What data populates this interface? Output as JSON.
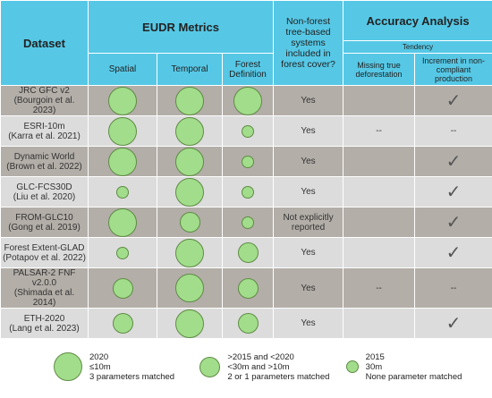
{
  "header": {
    "dataset": "Dataset",
    "eudr": "EUDR Metrics",
    "spatial": "Spatial",
    "temporal": "Temporal",
    "forest_definition": "Forest Definition",
    "non_forest": "Non-forest tree-based systems included in forest cover?",
    "accuracy": "Accuracy Analysis",
    "tendency": "Tendency",
    "missing": "Missing true deforestation",
    "increment": "Increment in non-compliant production"
  },
  "rows": [
    {
      "dataset": "JRC GFC v2",
      "reference": "(Bourgoin et al. 2023)",
      "spatial": 0,
      "temporal": 0,
      "forest_definition": 0,
      "non_forest": "Yes",
      "missing": null,
      "increment": "✓"
    },
    {
      "dataset": "ESRI-10m",
      "reference": "(Karra et al. 2021)",
      "spatial": 0,
      "temporal": 0,
      "forest_definition": 2,
      "non_forest": "Yes",
      "missing": "--",
      "increment": "--"
    },
    {
      "dataset": "Dynamic World",
      "reference": "(Brown et al. 2022)",
      "spatial": 0,
      "temporal": 0,
      "forest_definition": 2,
      "non_forest": "Yes",
      "missing": null,
      "increment": "✓"
    },
    {
      "dataset": "GLC-FCS30D",
      "reference": "(Liu et al. 2020)",
      "spatial": 2,
      "temporal": 0,
      "forest_definition": 2,
      "non_forest": "Yes",
      "missing": null,
      "increment": "✓"
    },
    {
      "dataset": "FROM-GLC10",
      "reference": "(Gong et al. 2019)",
      "spatial": 0,
      "temporal": 1,
      "forest_definition": 2,
      "non_forest": "Not explicitly reported",
      "missing": null,
      "increment": "✓"
    },
    {
      "dataset": "Forest Extent-GLAD",
      "reference": "(Potapov et al. 2022)",
      "spatial": 2,
      "temporal": 0,
      "forest_definition": 1,
      "non_forest": "Yes",
      "missing": null,
      "increment": "✓"
    },
    {
      "dataset": "PALSAR-2 FNF v2.0.0",
      "reference": "(Shimada et al. 2014)",
      "spatial": 1,
      "temporal": 0,
      "forest_definition": 1,
      "non_forest": "Yes",
      "missing": "--",
      "increment": "--"
    },
    {
      "dataset": "ETH-2020",
      "reference": "(Lang et al. 2023)",
      "spatial": 1,
      "temporal": 0,
      "forest_definition": 1,
      "non_forest": "Yes",
      "missing": null,
      "increment": "✓"
    }
  ],
  "legend": [
    {
      "lines": [
        "2020",
        "≤10m",
        "3 parameters matched"
      ]
    },
    {
      "lines": [
        ">2015 and <2020",
        "<30m and >10m",
        "2 or 1 parameters matched"
      ]
    },
    {
      "lines": [
        "2015",
        "30m",
        "None parameter matched"
      ]
    }
  ]
}
